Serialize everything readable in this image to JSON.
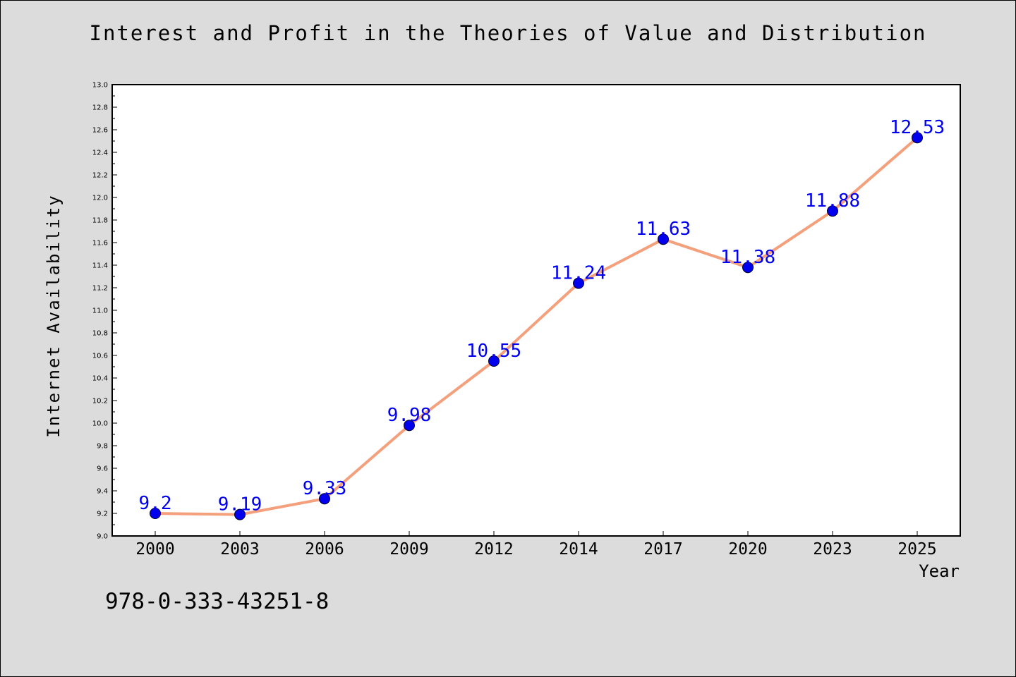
{
  "chart_data": {
    "type": "line",
    "title": "Interest and Profit in the Theories of Value and Distribution",
    "xlabel": "Year",
    "ylabel": "Internet Availability",
    "categories": [
      "2000",
      "2003",
      "2006",
      "2009",
      "2012",
      "2014",
      "2017",
      "2020",
      "2023",
      "2025"
    ],
    "series": [
      {
        "values": [
          9.2,
          9.19,
          9.33,
          9.98,
          10.55,
          11.24,
          11.63,
          11.38,
          11.88,
          12.53
        ],
        "labels": [
          "9.2",
          "9.19",
          "9.33",
          "9.98",
          "10.55",
          "11.24",
          "11.63",
          "11.38",
          "11.88",
          "12.53"
        ],
        "line_color": "#f4a07c",
        "marker_color": "#0000ee",
        "label_color": "#0000ee"
      }
    ],
    "ylim": [
      9.0,
      13.0
    ],
    "yticks": [
      "9.0",
      "9.2",
      "9.4",
      "9.6",
      "9.8",
      "10.0",
      "10.2",
      "10.4",
      "10.6",
      "10.8",
      "11.0",
      "11.2",
      "11.4",
      "11.6",
      "11.8",
      "12.0",
      "12.2",
      "12.4",
      "12.6",
      "12.8",
      "13.0"
    ],
    "grid": false,
    "legend": "none"
  },
  "footer": {
    "code": "978-0-333-43251-8"
  }
}
